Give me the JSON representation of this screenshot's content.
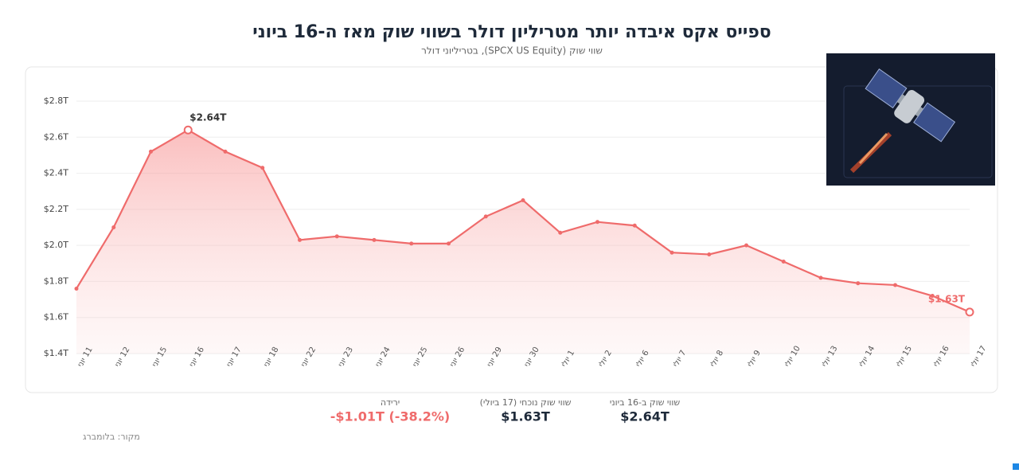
{
  "chart_data": {
    "type": "line",
    "title": "ספייס אקס איבדה יותר מטריליון דולר בשווי שוק מאז ה-16 ביוני",
    "subtitle": "שווי שוק (SPCX US Equity), בטריליוני דולר",
    "categories": [
      "11 יוני",
      "12 יוני",
      "15 יוני",
      "16 יוני",
      "17 יוני",
      "18 יוני",
      "22 יוני",
      "23 יוני",
      "24 יוני",
      "25 יוני",
      "26 יוני",
      "29 יוני",
      "30 יוני",
      "1 יולי",
      "2 יולי",
      "6 יולי",
      "7 יולי",
      "8 יולי",
      "9 יולי",
      "10 יולי",
      "13 יולי",
      "14 יולי",
      "15 יולי",
      "16 יולי",
      "17 יולי"
    ],
    "values": [
      1.76,
      2.1,
      2.52,
      2.64,
      2.52,
      2.43,
      2.03,
      2.05,
      2.03,
      2.01,
      2.01,
      2.16,
      2.25,
      2.07,
      2.13,
      2.11,
      1.96,
      1.95,
      2.0,
      1.91,
      1.82,
      1.79,
      1.78,
      1.72,
      1.63
    ],
    "value_labels": [
      null,
      null,
      null,
      "$2.64T",
      null,
      null,
      null,
      null,
      null,
      null,
      null,
      null,
      null,
      null,
      null,
      null,
      null,
      null,
      null,
      null,
      null,
      null,
      null,
      null,
      "$1.63T"
    ],
    "color": "#ef6b6b",
    "ylim": [
      1.4,
      2.8
    ],
    "yticks": [
      {
        "value": 1.4,
        "label": "$1.4T"
      },
      {
        "value": 1.6,
        "label": "$1.6T"
      },
      {
        "value": 1.8,
        "label": "$1.8T"
      },
      {
        "value": 2.0,
        "label": "$2.0T"
      },
      {
        "value": 2.2,
        "label": "$2.2T"
      },
      {
        "value": 2.4,
        "label": "$2.4T"
      },
      {
        "value": 2.6,
        "label": "$2.6T"
      },
      {
        "value": 2.8,
        "label": "$2.8T"
      }
    ],
    "grid": true
  },
  "stats": [
    {
      "label": "ירידה",
      "value": "-$1.01T (-38.2%)"
    },
    {
      "label": "שווי שוק נוכחי (17 ביולי)",
      "value": "$1.63T"
    },
    {
      "label": "שווי שוק ב-16 ביוני",
      "value": "$2.64T"
    }
  ],
  "source": "מקור: בלומברג"
}
